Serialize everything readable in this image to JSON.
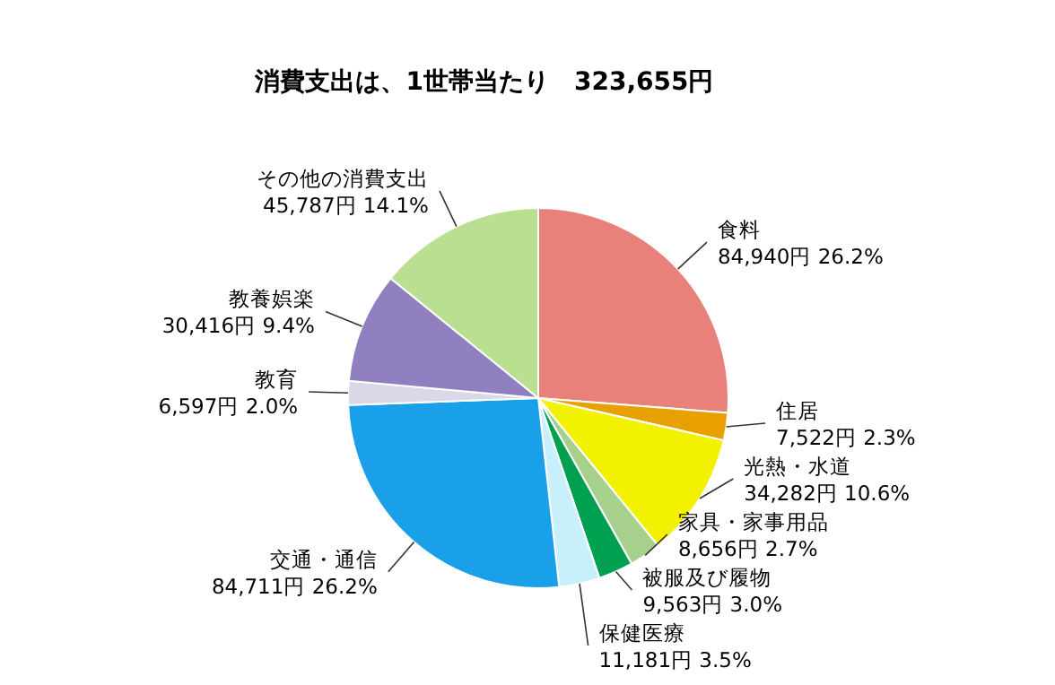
{
  "chart_data": {
    "type": "pie",
    "title": "消費支出は、1世帯当たり　323,655円",
    "categories": [
      "食料",
      "住居",
      "光熱・水道",
      "家具・家事用品",
      "被服及び履物",
      "保健医療",
      "交通・通信",
      "教育",
      "教養娯楽",
      "その他の消費支出"
    ],
    "values": [
      84940,
      7522,
      34282,
      8656,
      9563,
      11181,
      84711,
      6597,
      30416,
      45787
    ],
    "value_labels": [
      "84,940円 26.2%",
      "7,522円 2.3%",
      "34,282円 10.6%",
      "8,656円 2.7%",
      "9,563円 3.0%",
      "11,181円 3.5%",
      "84,711円 26.2%",
      "6,597円 2.0%",
      "30,416円 9.4%",
      "45,787円 14.1%"
    ],
    "colors": [
      "#e8817a",
      "#e8a000",
      "#f2f200",
      "#a8d08d",
      "#00a050",
      "#c8f0fc",
      "#1aa0e8",
      "#d8d8e8",
      "#9080c0",
      "#b8e090"
    ]
  }
}
